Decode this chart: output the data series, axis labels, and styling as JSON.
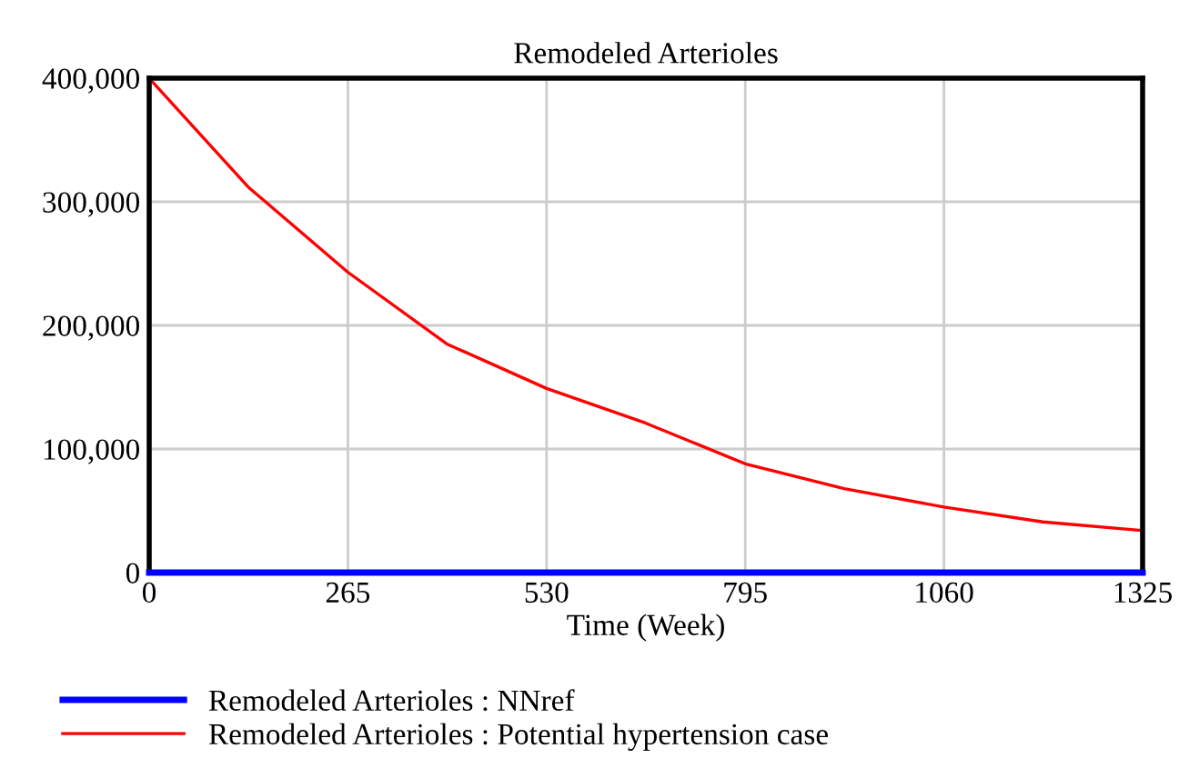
{
  "chart_data": {
    "type": "line",
    "title": "Remodeled Arterioles",
    "xlabel": "Time (Week)",
    "series": [
      {
        "name": "Remodeled Arterioles : NNref",
        "color": "#0000ff",
        "x": [
          0,
          1325
        ],
        "values": [
          0,
          0
        ]
      },
      {
        "name": "Remodeled Arterioles : Potential hypertension case",
        "color": "#ff0000",
        "x": [
          0,
          132,
          265,
          397,
          530,
          662,
          795,
          927,
          1060,
          1192,
          1325
        ],
        "values": [
          400000,
          312000,
          243000,
          185000,
          149000,
          121000,
          88000,
          68000,
          53000,
          41000,
          34000
        ]
      }
    ],
    "xlim": [
      0,
      1325
    ],
    "xticks": [
      0,
      265,
      530,
      795,
      1060,
      1325
    ],
    "ylim": [
      0,
      400000
    ],
    "yticks": [
      {
        "value": 0,
        "label": "0"
      },
      {
        "value": 100000,
        "label": "100,000"
      },
      {
        "value": 200000,
        "label": "200,000"
      },
      {
        "value": 300000,
        "label": "300,000"
      },
      {
        "value": 400000,
        "label": "400,000"
      }
    ],
    "grid": true,
    "legend": "bottom"
  }
}
